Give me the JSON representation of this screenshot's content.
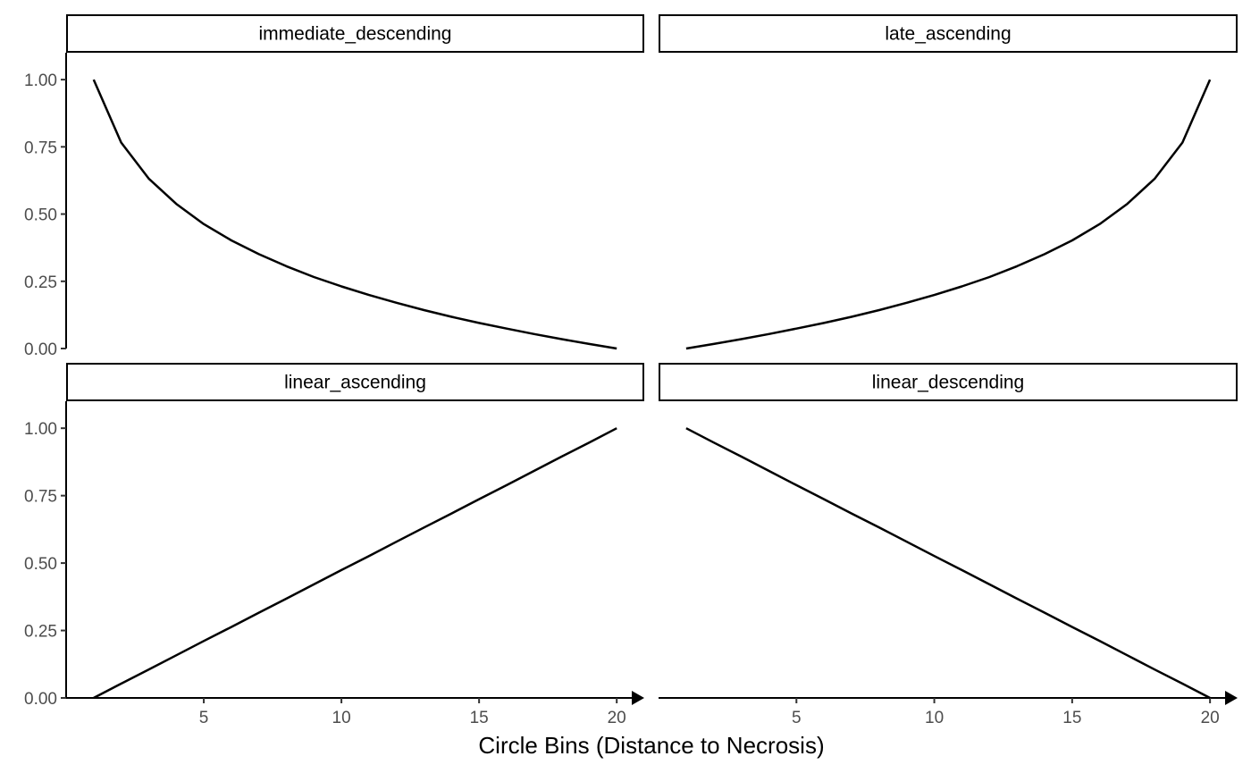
{
  "chart_data": {
    "type": "line",
    "layout": "facet-grid-2x2",
    "xlabel": "Circle Bins (Distance to Necrosis)",
    "ylabel": "",
    "x_range": [
      0,
      21
    ],
    "y_range": [
      0,
      1.1
    ],
    "x_ticks": [
      5,
      10,
      15,
      20
    ],
    "y_ticks": [
      0,
      0.25,
      0.5,
      0.75,
      1
    ],
    "y_tick_labels": [
      "0.00",
      "0.25",
      "0.50",
      "0.75",
      "1.00"
    ],
    "x_axis_arrow": true,
    "grid": false,
    "x": [
      1,
      2,
      3,
      4,
      5,
      6,
      7,
      8,
      9,
      10,
      11,
      12,
      13,
      14,
      15,
      16,
      17,
      18,
      19,
      20
    ],
    "panels": [
      {
        "name": "immediate_descending",
        "values": [
          1.0,
          0.766,
          0.632,
          0.538,
          0.463,
          0.402,
          0.351,
          0.306,
          0.266,
          0.231,
          0.199,
          0.17,
          0.143,
          0.118,
          0.095,
          0.074,
          0.054,
          0.035,
          0.017,
          0.0
        ]
      },
      {
        "name": "late_ascending",
        "values": [
          0.0,
          0.017,
          0.035,
          0.054,
          0.074,
          0.095,
          0.118,
          0.143,
          0.17,
          0.199,
          0.231,
          0.266,
          0.306,
          0.351,
          0.402,
          0.463,
          0.538,
          0.632,
          0.766,
          1.0
        ]
      },
      {
        "name": "linear_ascending",
        "values": [
          0.0,
          0.053,
          0.105,
          0.158,
          0.211,
          0.263,
          0.316,
          0.368,
          0.421,
          0.474,
          0.526,
          0.579,
          0.632,
          0.684,
          0.737,
          0.789,
          0.842,
          0.895,
          0.947,
          1.0
        ]
      },
      {
        "name": "linear_descending",
        "values": [
          1.0,
          0.947,
          0.895,
          0.842,
          0.789,
          0.737,
          0.684,
          0.632,
          0.579,
          0.526,
          0.474,
          0.421,
          0.368,
          0.316,
          0.263,
          0.211,
          0.158,
          0.105,
          0.053,
          0.0
        ]
      }
    ]
  }
}
